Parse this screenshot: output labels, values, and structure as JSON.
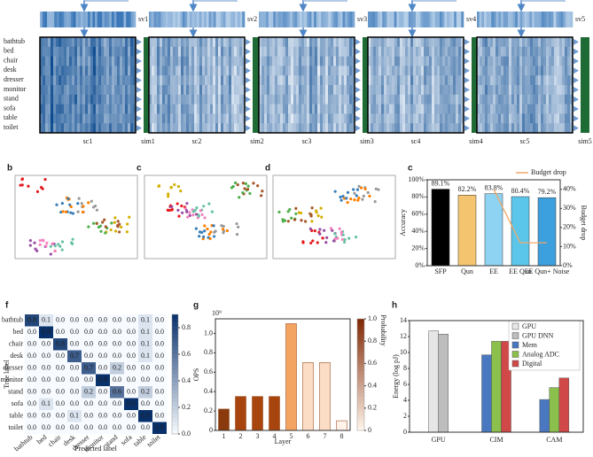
{
  "pipeline": {
    "vectors": [
      "sv1",
      "sv2",
      "sv3",
      "sv4",
      "sv5"
    ],
    "maps": [
      "sc1",
      "sc2",
      "sc3",
      "sc4",
      "sc5"
    ],
    "sims": [
      "sim1",
      "sim2",
      "sim3",
      "sim4",
      "sim5"
    ],
    "classes": [
      "bathtub",
      "bed",
      "chair",
      "desk",
      "dresser",
      "monitor",
      "stand",
      "sofa",
      "table",
      "toilet"
    ]
  },
  "embeddings": {
    "panels": [
      "b",
      "c",
      "d"
    ]
  },
  "chart_data": [
    {
      "type": "bar",
      "panel": "c",
      "categories": [
        "SFP",
        "Qun",
        "EE",
        "EE Qun",
        "EE Qun+ Noise"
      ],
      "values": [
        89.1,
        82.2,
        83.8,
        80.4,
        79.2
      ],
      "value_labels": [
        "89.1%",
        "82.2%",
        "83.8%",
        "80.4%",
        "79.2%"
      ],
      "colors": [
        "#000000",
        "#f5c46e",
        "#8fd3f2",
        "#5cc6ea",
        "#3c9fde"
      ],
      "ylabel": "Accuracy",
      "y2label": "Budget drop",
      "ylim": [
        0,
        100
      ],
      "yticks": [
        {
          "value": 0,
          "label": "0%"
        },
        {
          "value": 20,
          "label": "20%"
        },
        {
          "value": 40,
          "label": "40%"
        },
        {
          "value": 60,
          "label": "60%"
        },
        {
          "value": 80,
          "label": "80%"
        },
        {
          "value": 100,
          "label": "100%"
        }
      ],
      "y2lim": [
        0,
        45
      ],
      "y2ticks": [
        {
          "value": 0,
          "label": "0%"
        },
        {
          "value": 10,
          "label": "10%"
        },
        {
          "value": 20,
          "label": "20%"
        },
        {
          "value": 30,
          "label": "30%"
        },
        {
          "value": 40,
          "label": "40%"
        }
      ],
      "series": [
        {
          "name": "Budget drop",
          "color": "#f0a868",
          "axis": "y2",
          "values": [
            null,
            null,
            40,
            12,
            12
          ]
        }
      ]
    },
    {
      "type": "heatmap",
      "panel": "f",
      "labels": [
        "bathtub",
        "bed",
        "chair",
        "desk",
        "dresser",
        "monitor",
        "stand",
        "sofa",
        "table",
        "toilet"
      ],
      "xlabel": "Predicted label",
      "ylabel": "True label",
      "values": [
        [
          0.8,
          0.1,
          0,
          0,
          0,
          0,
          0,
          0,
          0.1,
          0
        ],
        [
          0,
          0.9,
          0,
          0,
          0,
          0,
          0,
          0,
          0.1,
          0
        ],
        [
          0,
          0,
          0.8,
          0,
          0,
          0,
          0,
          0,
          0.1,
          0
        ],
        [
          0,
          0,
          0,
          0.7,
          0,
          0,
          0,
          0,
          0.1,
          0
        ],
        [
          0,
          0,
          0,
          0,
          0.7,
          0,
          0.2,
          0,
          0,
          0
        ],
        [
          0,
          0,
          0,
          0,
          0,
          0.9,
          0,
          0,
          0,
          0
        ],
        [
          0,
          0,
          0,
          0,
          0.2,
          0,
          0.6,
          0,
          0.2,
          0
        ],
        [
          0,
          0.1,
          0,
          0,
          0,
          0,
          0,
          0.9,
          0,
          0
        ],
        [
          0,
          0,
          0,
          0.1,
          0,
          0,
          0,
          0,
          0.9,
          0
        ],
        [
          0,
          0,
          0,
          0,
          0,
          0,
          0,
          0,
          0,
          0.9
        ]
      ],
      "value_labels": [
        [
          "0.8",
          "0.1",
          "0.0",
          "0.0",
          "0.0",
          "0.0",
          "0.0",
          "0.0",
          "0.1",
          "0.0"
        ],
        [
          "0.0",
          "0.9",
          "0.0",
          "0.0",
          "0.0",
          "0.0",
          "0.0",
          "0.0",
          "0.1",
          "0.0"
        ],
        [
          "0.0",
          "0.0",
          "0.8",
          "0.0",
          "0.0",
          "0.0",
          "0.0",
          "0.0",
          "0.1",
          "0.0"
        ],
        [
          "0.0",
          "0.0",
          "0.0",
          "0.7",
          "0.0",
          "0.0",
          "0.0",
          "0.0",
          "0.1",
          "0.0"
        ],
        [
          "0.0",
          "0.0",
          "0.0",
          "0.0",
          "0.7",
          "0.0",
          "0.2",
          "0.0",
          "0.0",
          "0.0"
        ],
        [
          "0.0",
          "0.0",
          "0.0",
          "0.0",
          "0.0",
          "0.9",
          "0.0",
          "0.0",
          "0.0",
          "0.0"
        ],
        [
          "0.0",
          "0.0",
          "0.0",
          "0.0",
          "0.2",
          "0.0",
          "0.6",
          "0.0",
          "0.2",
          "0.0"
        ],
        [
          "0.0",
          "0.1",
          "0.0",
          "0.0",
          "0.0",
          "0.0",
          "0.0",
          "0.9",
          "0.0",
          "0.0"
        ],
        [
          "0.0",
          "0.0",
          "0.0",
          "0.1",
          "0.0",
          "0.0",
          "0.0",
          "0.0",
          "0.9",
          "0.0"
        ],
        [
          "0.0",
          "0.0",
          "0.0",
          "0.0",
          "0.0",
          "0.0",
          "0.0",
          "0.0",
          "0.0",
          "0.9"
        ]
      ],
      "cmap": [
        "#f7fbff",
        "#08306b"
      ],
      "clim": [
        0,
        0.9
      ],
      "cticks": [
        {
          "value": 0,
          "label": "0.0"
        },
        0.2,
        0.4,
        0.6,
        0.8
      ]
    },
    {
      "type": "bar",
      "panel": "g",
      "categories": [
        "1",
        "2",
        "3",
        "4",
        "5",
        "6",
        "7",
        "8"
      ],
      "values": [
        0.22,
        0.35,
        0.35,
        0.35,
        1.1,
        0.7,
        0.7,
        0.1
      ],
      "colors": [
        "#8a3a0c",
        "#a8450e",
        "#a8450e",
        "#a8450e",
        "#f4a462",
        "#fbdcc4",
        "#fbdcc4",
        "#fff2e8"
      ],
      "xlabel": "Layer",
      "ylabel": "OPS",
      "yscale_label": "10⁹",
      "ylim": [
        0,
        1.15
      ],
      "yticks": [
        {
          "value": 0,
          "label": "0"
        },
        0.2,
        0.4,
        0.6,
        0.8,
        {
          "value": 1.0,
          "label": "1.0"
        }
      ],
      "colorbar": {
        "label": "Probability",
        "cmap": [
          "#fff5eb",
          "#7f2704"
        ],
        "clim": [
          0,
          1
        ],
        "ticks": [
          0,
          0.2,
          0.4,
          0.6,
          0.8,
          {
            "value": 1.0,
            "label": "1.0"
          }
        ]
      }
    },
    {
      "type": "grouped-bar",
      "panel": "h",
      "categories": [
        "GPU",
        "CIM",
        "CAM"
      ],
      "ylabel": "Energy (log pJ)",
      "ylim": [
        0,
        14
      ],
      "yticks": [
        0,
        2,
        4,
        6,
        8,
        10,
        12,
        14
      ],
      "series": [
        {
          "name": "GPU",
          "color": "#e6e6e6",
          "values": [
            12.7,
            null,
            null
          ]
        },
        {
          "name": "GPU DNN",
          "color": "#bdbdbd",
          "values": [
            12.3,
            null,
            null
          ]
        },
        {
          "name": "Mem",
          "color": "#4a78c0",
          "values": [
            null,
            9.7,
            4.1
          ]
        },
        {
          "name": "Analog ADC",
          "color": "#8cc04c",
          "values": [
            null,
            11.4,
            5.6
          ]
        },
        {
          "name": "Digital",
          "color": "#d04848",
          "values": [
            null,
            11.4,
            6.8
          ]
        }
      ]
    }
  ]
}
